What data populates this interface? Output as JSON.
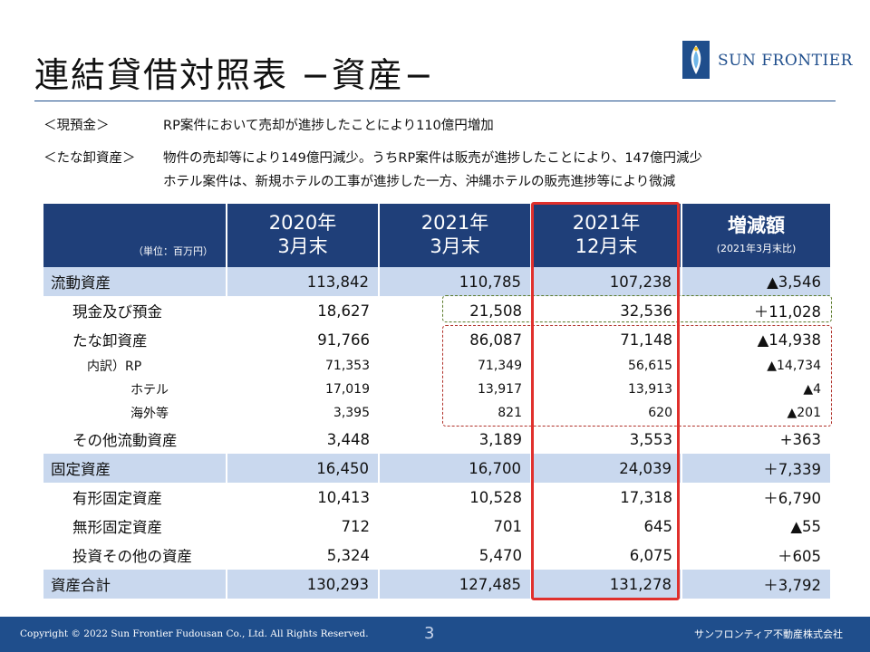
{
  "title": "連結貸借対照表 −資産−",
  "logo": {
    "text": "SUN FRONTIER",
    "mark": "sun-frontier-logo"
  },
  "notes": [
    {
      "label": "＜現預金＞",
      "lines": [
        "RP案件において売却が進捗したことにより110億円増加"
      ]
    },
    {
      "label": "＜たな卸資産＞",
      "lines": [
        "物件の売却等により149億円減少。うちRP案件は販売が進捗したことにより、147億円減少",
        "ホテル案件は、新規ホテルの工事が進捗した一方、沖縄ホテルの販売進捗等により微減"
      ]
    }
  ],
  "table": {
    "unit": "（単位：百万円）",
    "headers": [
      {
        "line1": "2020年",
        "line2": "3月末"
      },
      {
        "line1": "2021年",
        "line2": "3月末"
      },
      {
        "line1": "2021年",
        "line2": "12月末"
      },
      {
        "line1": "増減額",
        "line2": "(2021年3月末比)"
      }
    ],
    "rows": [
      {
        "label": "流動資産",
        "v1": "113,842",
        "v2": "110,785",
        "v3": "107,238",
        "diff": "▲3,546"
      },
      {
        "label": "現金及び預金",
        "v1": "18,627",
        "v2": "21,508",
        "v3": "32,536",
        "diff": "＋11,028"
      },
      {
        "label": "たな卸資産",
        "v1": "91,766",
        "v2": "86,087",
        "v3": "71,148",
        "diff": "▲14,938"
      },
      {
        "label": "内訳）RP",
        "v1": "71,353",
        "v2": "71,349",
        "v3": "56,615",
        "diff": "▲14,734"
      },
      {
        "label": "ホテル",
        "v1": "17,019",
        "v2": "13,917",
        "v3": "13,913",
        "diff": "▲4"
      },
      {
        "label": "海外等",
        "v1": "3,395",
        "v2": "821",
        "v3": "620",
        "diff": "▲201"
      },
      {
        "label": "その他流動資産",
        "v1": "3,448",
        "v2": "3,189",
        "v3": "3,553",
        "diff": "+363"
      },
      {
        "label": "固定資産",
        "v1": "16,450",
        "v2": "16,700",
        "v3": "24,039",
        "diff": "＋7,339"
      },
      {
        "label": "有形固定資産",
        "v1": "10,413",
        "v2": "10,528",
        "v3": "17,318",
        "diff": "＋6,790"
      },
      {
        "label": "無形固定資産",
        "v1": "712",
        "v2": "701",
        "v3": "645",
        "diff": "▲55"
      },
      {
        "label": "投資その他の資産",
        "v1": "5,324",
        "v2": "5,470",
        "v3": "6,075",
        "diff": "＋605"
      },
      {
        "label": "資産合計",
        "v1": "130,293",
        "v2": "127,485",
        "v3": "131,278",
        "diff": "＋3,792"
      }
    ]
  },
  "footer": {
    "copyright": "Copyright © 2022 Sun Frontier Fudousan Co., Ltd. All Rights Reserved.",
    "page": "3",
    "company": "サンフロンティア不動産株式会社"
  },
  "colors": {
    "header_bg": "#1f3f79",
    "highlight_row": "#c9d8ee",
    "box_red": "#e0302c",
    "footer_bg": "#1f4e8c"
  }
}
